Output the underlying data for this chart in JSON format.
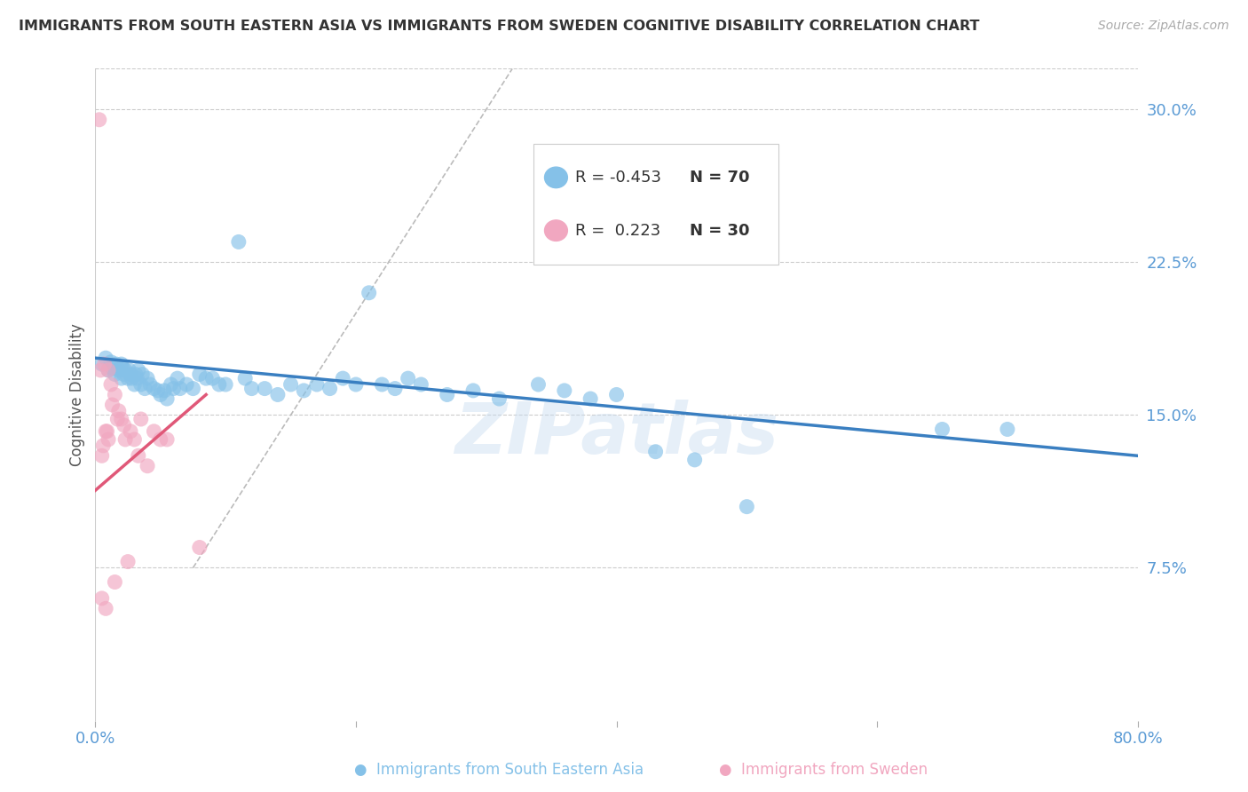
{
  "title": "IMMIGRANTS FROM SOUTH EASTERN ASIA VS IMMIGRANTS FROM SWEDEN COGNITIVE DISABILITY CORRELATION CHART",
  "source": "Source: ZipAtlas.com",
  "ylabel": "Cognitive Disability",
  "right_yticks": [
    0.0,
    0.075,
    0.15,
    0.225,
    0.3
  ],
  "right_ytick_labels": [
    "",
    "7.5%",
    "15.0%",
    "22.5%",
    "30.0%"
  ],
  "xmin": 0.0,
  "xmax": 0.8,
  "ymin": 0.0,
  "ymax": 0.32,
  "blue_R": -0.453,
  "blue_N": 70,
  "pink_R": 0.223,
  "pink_N": 30,
  "blue_color": "#85C1E8",
  "pink_color": "#F1A7C0",
  "blue_line_color": "#3A7FC1",
  "pink_line_color": "#E05878",
  "diagonal_color": "#BBBBBB",
  "background_color": "#FFFFFF",
  "grid_color": "#CCCCCC",
  "title_color": "#333333",
  "axis_label_color": "#5B9BD5",
  "source_color": "#AAAAAA",
  "watermark": "ZIPatlas",
  "blue_scatter_x": [
    0.005,
    0.008,
    0.01,
    0.012,
    0.013,
    0.015,
    0.016,
    0.018,
    0.02,
    0.02,
    0.021,
    0.022,
    0.023,
    0.025,
    0.026,
    0.027,
    0.028,
    0.03,
    0.031,
    0.032,
    0.033,
    0.035,
    0.036,
    0.038,
    0.04,
    0.042,
    0.045,
    0.048,
    0.05,
    0.053,
    0.055,
    0.058,
    0.06,
    0.063,
    0.065,
    0.07,
    0.075,
    0.08,
    0.085,
    0.09,
    0.095,
    0.1,
    0.11,
    0.115,
    0.12,
    0.13,
    0.14,
    0.15,
    0.16,
    0.17,
    0.18,
    0.19,
    0.2,
    0.21,
    0.22,
    0.23,
    0.24,
    0.25,
    0.27,
    0.29,
    0.31,
    0.34,
    0.36,
    0.38,
    0.4,
    0.43,
    0.46,
    0.5,
    0.65,
    0.7
  ],
  "blue_scatter_y": [
    0.175,
    0.178,
    0.172,
    0.176,
    0.173,
    0.17,
    0.175,
    0.172,
    0.168,
    0.175,
    0.173,
    0.17,
    0.172,
    0.168,
    0.172,
    0.17,
    0.168,
    0.165,
    0.17,
    0.168,
    0.172,
    0.165,
    0.17,
    0.163,
    0.168,
    0.165,
    0.163,
    0.162,
    0.16,
    0.162,
    0.158,
    0.165,
    0.163,
    0.168,
    0.163,
    0.165,
    0.163,
    0.17,
    0.168,
    0.168,
    0.165,
    0.165,
    0.235,
    0.168,
    0.163,
    0.163,
    0.16,
    0.165,
    0.162,
    0.165,
    0.163,
    0.168,
    0.165,
    0.21,
    0.165,
    0.163,
    0.168,
    0.165,
    0.16,
    0.162,
    0.158,
    0.165,
    0.162,
    0.158,
    0.16,
    0.132,
    0.128,
    0.105,
    0.143,
    0.143
  ],
  "pink_scatter_x": [
    0.003,
    0.004,
    0.005,
    0.005,
    0.006,
    0.007,
    0.008,
    0.008,
    0.009,
    0.01,
    0.01,
    0.012,
    0.013,
    0.015,
    0.015,
    0.017,
    0.018,
    0.02,
    0.022,
    0.023,
    0.025,
    0.027,
    0.03,
    0.033,
    0.035,
    0.04,
    0.045,
    0.05,
    0.055,
    0.08
  ],
  "pink_scatter_y": [
    0.295,
    0.172,
    0.06,
    0.13,
    0.135,
    0.175,
    0.142,
    0.055,
    0.142,
    0.172,
    0.138,
    0.165,
    0.155,
    0.16,
    0.068,
    0.148,
    0.152,
    0.148,
    0.145,
    0.138,
    0.078,
    0.142,
    0.138,
    0.13,
    0.148,
    0.125,
    0.142,
    0.138,
    0.138,
    0.085
  ],
  "blue_line_x": [
    0.0,
    0.8
  ],
  "blue_line_y": [
    0.178,
    0.13
  ],
  "pink_line_x": [
    0.0,
    0.085
  ],
  "pink_line_y": [
    0.113,
    0.16
  ],
  "diag_line_x": [
    0.075,
    0.32
  ],
  "diag_line_y": [
    0.075,
    0.32
  ]
}
